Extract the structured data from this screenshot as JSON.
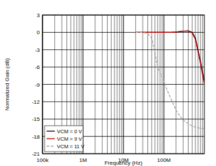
{
  "chart_data": {
    "type": "line",
    "x_label": "Frequency (Hz)",
    "y_label": "Normalized Gain (dB)",
    "log": "x",
    "grid": true,
    "legend": "lower-left",
    "xlim": [
      100000,
      1000000000
    ],
    "xticks": [
      {
        "value": 100000,
        "label": "100k"
      },
      {
        "value": 1000000,
        "label": "1M"
      },
      {
        "value": 10000000,
        "label": "10M"
      },
      {
        "value": 100000000,
        "label": "100M"
      }
    ],
    "ylim": [
      -21,
      3
    ],
    "yticks": [
      3,
      0,
      -3,
      -6,
      -9,
      -12,
      -15,
      -18,
      -21
    ],
    "x": [
      20000000,
      30000000,
      40000000,
      50000000,
      60000000,
      70000000,
      80000000,
      100000000,
      120000000,
      150000000,
      200000000,
      250000000,
      300000000,
      400000000,
      500000000,
      600000000,
      800000000,
      1000000000
    ],
    "series": [
      {
        "name": "VCM = 0 V",
        "color": "#000000",
        "line_style": "solid",
        "values": [
          0,
          0,
          0,
          0,
          0,
          0,
          0,
          0,
          0,
          0,
          0.05,
          0.15,
          0.2,
          0.25,
          0,
          -1,
          -5,
          -8.5
        ]
      },
      {
        "name": "VCM = 9 V",
        "color": "#c00000",
        "line_style": "solid",
        "values": [
          0,
          0,
          0,
          0,
          0,
          0,
          0,
          0,
          0,
          0,
          0.05,
          0.15,
          0.2,
          0.2,
          -0.1,
          -1.2,
          -5.3,
          -9
        ]
      },
      {
        "name": "VCM = 11 V",
        "color": "#a6a6a6",
        "line_style": "dashed",
        "values": [
          0,
          0,
          -0.2,
          -1,
          -3.5,
          -6,
          -7,
          -8.5,
          -10,
          -11.5,
          -13.5,
          -14.5,
          -15.2,
          -15.8,
          -16.2,
          -16.4,
          -16.6,
          -16.7
        ]
      }
    ]
  }
}
